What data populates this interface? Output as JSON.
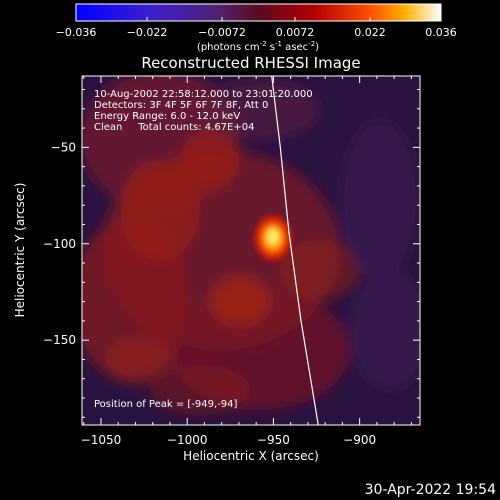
{
  "chart_data": {
    "type": "heatmap",
    "title": "Reconstructed RHESSI Image",
    "xlabel": "Heliocentric X (arcsec)",
    "ylabel": "Heliocentric Y (arcsec)",
    "xlim": [
      -1061,
      -865
    ],
    "ylim": [
      -194,
      -13
    ],
    "xticks": [
      -1050,
      -1000,
      -950,
      -900
    ],
    "yticks": [
      -150,
      -100,
      -50
    ],
    "colorbar": {
      "range": [
        -0.036,
        0.036
      ],
      "ticks": [
        "-0.036",
        "-0.022",
        "-0.0072",
        "0.0072",
        "0.022",
        "0.036"
      ],
      "label_base": "(photons cm",
      "label_exp1": "-2",
      "label_mid": " s",
      "label_exp2": "-1",
      "label_mid2": " asec",
      "label_exp3": "-2",
      "label_end": ")"
    },
    "annotations": {
      "line1": "10-Aug-2002 22:58:12.000 to 23:01:20.000",
      "line2": "Detectors: 3F 4F 5F 6F 7F 8F, Att 0",
      "line3": "Energy Range: 6.0 - 12.0 keV",
      "line4": "Clean     Total counts: 4.67E+04",
      "peak": "Position of Peak = [-949,-94]"
    },
    "peak_position": [
      -949,
      -94
    ],
    "limb_curve_points": [
      [
        -951,
        -13
      ],
      [
        -946,
        -50
      ],
      [
        -941,
        -94
      ],
      [
        -934,
        -140
      ],
      [
        -924,
        -194
      ]
    ]
  },
  "footer": {
    "datetime": "30-Apr-2022 19:54"
  }
}
